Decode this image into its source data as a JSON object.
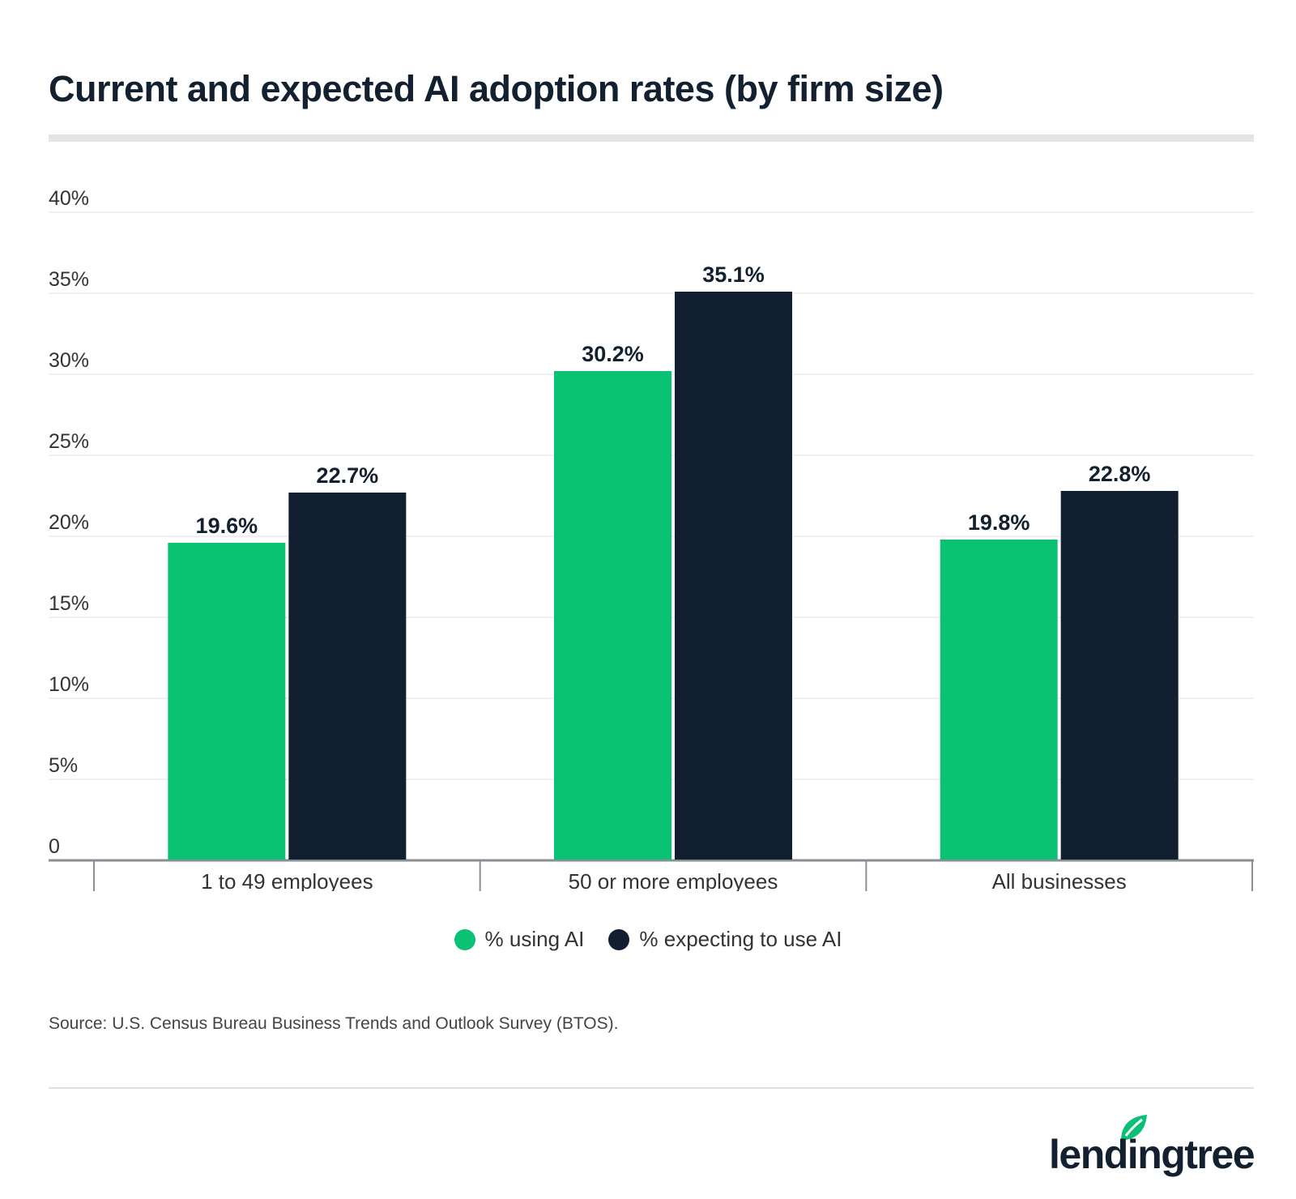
{
  "title": "Current and expected AI adoption rates (by firm size)",
  "source": "Source: U.S. Census Bureau Business Trends and Outlook Survey (BTOS).",
  "brand": {
    "name": "lendingtree",
    "leaf_color": "#0bbf74"
  },
  "colors": {
    "using": "#0bc174",
    "expecting": "#121f30",
    "grid": "#ececec",
    "axis": "#8a8f96"
  },
  "legend": [
    {
      "label": "% using AI",
      "color": "#0bc174"
    },
    {
      "label": "% expecting to use AI",
      "color": "#121f30"
    }
  ],
  "chart_data": {
    "type": "bar",
    "title": "Current and expected AI adoption rates (by firm size)",
    "categories": [
      "1 to 49 employees",
      "50 or more employees",
      "All businesses"
    ],
    "series": [
      {
        "name": "% using AI",
        "values": [
          19.6,
          30.2,
          19.8
        ],
        "labels": [
          "19.6%",
          "30.2%",
          "19.8%"
        ]
      },
      {
        "name": "% expecting to use AI",
        "values": [
          22.7,
          35.1,
          22.8
        ],
        "labels": [
          "22.7%",
          "35.1%",
          "22.8%"
        ]
      }
    ],
    "ylim": [
      0,
      40
    ],
    "yticks": [
      0,
      5,
      10,
      15,
      20,
      25,
      30,
      35,
      40
    ],
    "ytick_labels": [
      "0",
      "5%",
      "10%",
      "15%",
      "20%",
      "25%",
      "30%",
      "35%",
      "40%"
    ],
    "grid": true,
    "legend_position": "bottom"
  }
}
